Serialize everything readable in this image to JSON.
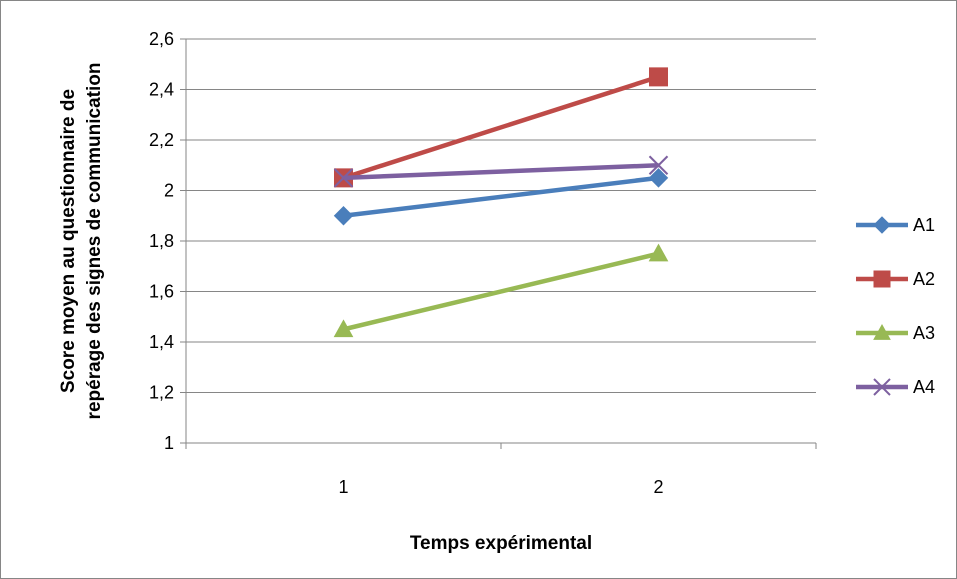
{
  "chart_data": {
    "type": "line",
    "title": "",
    "xlabel": "Temps expérimental",
    "ylabel_lines": [
      "Score moyen au questionnaire de",
      "repérage des signes de communication"
    ],
    "categories": [
      "1",
      "2"
    ],
    "ylim": [
      1,
      2.6
    ],
    "ytick_values": [
      1,
      1.2,
      1.4,
      1.6,
      1.8,
      2,
      2.2,
      2.4,
      2.6
    ],
    "ytick_labels": [
      "1",
      "1,2",
      "1,4",
      "1,6",
      "1,8",
      "2",
      "2,2",
      "2,4",
      "2,6"
    ],
    "grid": "horizontal",
    "legend_position": "right",
    "series": [
      {
        "name": "A1",
        "values": [
          1.9,
          2.05
        ],
        "color": "#4A7EBB",
        "marker": "diamond"
      },
      {
        "name": "A2",
        "values": [
          2.05,
          2.45
        ],
        "color": "#BE4B48",
        "marker": "square"
      },
      {
        "name": "A3",
        "values": [
          1.45,
          1.75
        ],
        "color": "#98B954",
        "marker": "triangle"
      },
      {
        "name": "A4",
        "values": [
          2.05,
          2.1
        ],
        "color": "#7D60A0",
        "marker": "x"
      }
    ]
  }
}
